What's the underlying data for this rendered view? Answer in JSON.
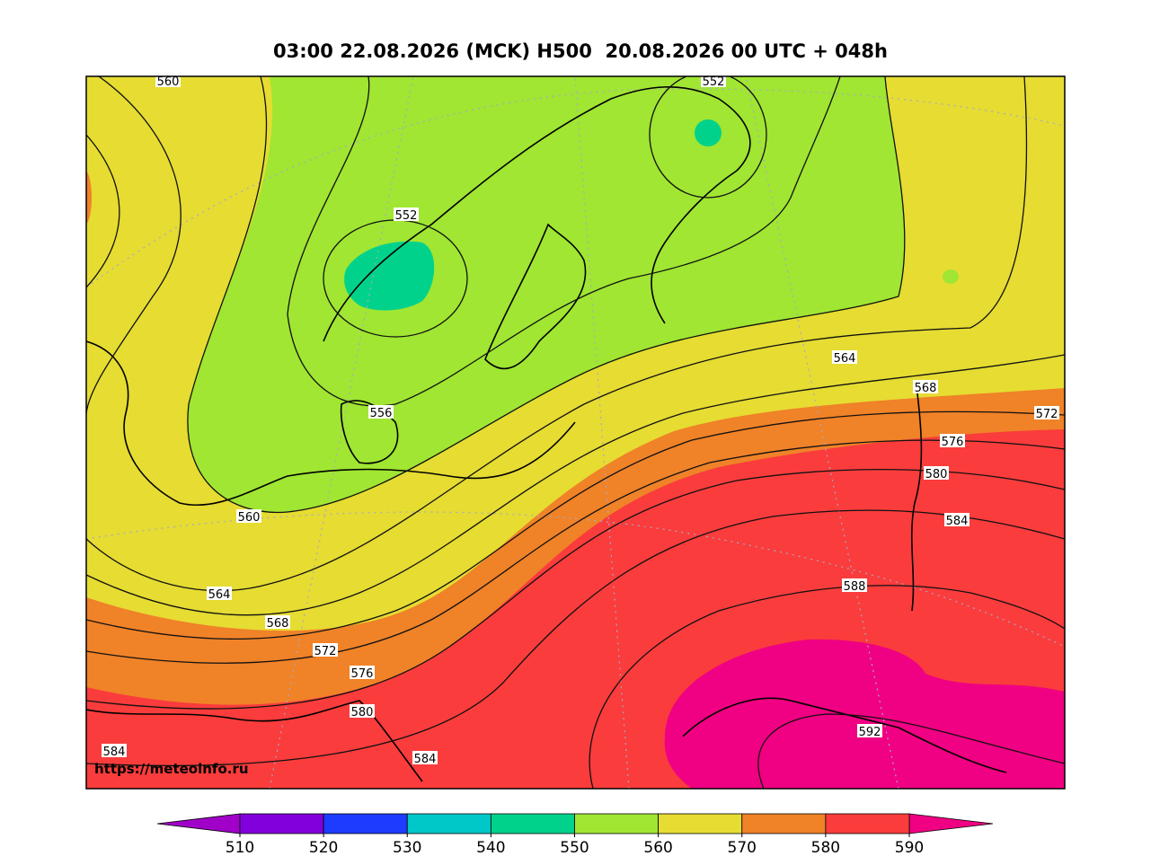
{
  "title": "03:00 22.08.2026 (MCK) H500  20.08.2026 00 UTC + 048h",
  "watermark": "https://meteoinfo.ru",
  "contour_labels": [
    560,
    552,
    552,
    556,
    560,
    564,
    568,
    572,
    576,
    580,
    584,
    588,
    564,
    568,
    572,
    576,
    580,
    584,
    584,
    592
  ],
  "colorbar": {
    "ticks": [
      510,
      520,
      530,
      540,
      550,
      560,
      570,
      580,
      590
    ],
    "under_color": "#a000c8",
    "colors": [
      "#8200dc",
      "#1e3cff",
      "#00c8c8",
      "#00d28c",
      "#a0e632",
      "#e6dc32",
      "#f08228",
      "#fa3c3c"
    ],
    "over_color": "#f00082"
  }
}
